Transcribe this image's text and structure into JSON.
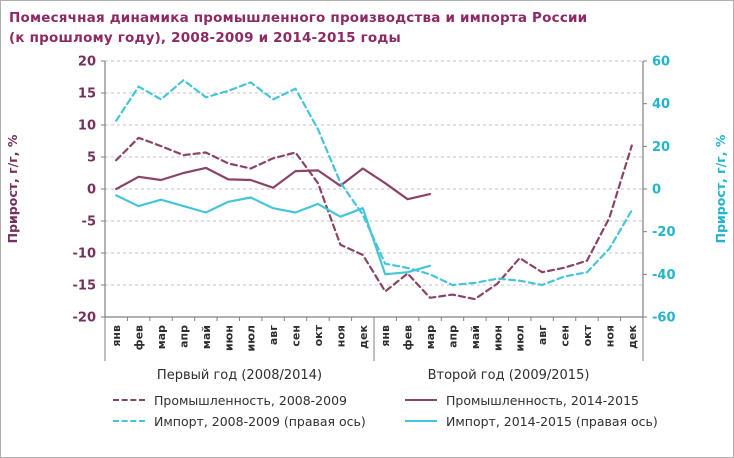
{
  "title": {
    "line1": "Помесячная динамика промышленного производства и импорта России",
    "line2": "(к прошлому году), 2008-2009 и 2014-2015 годы"
  },
  "chart_data": {
    "type": "line",
    "categories": [
      "янв",
      "фев",
      "мар",
      "апр",
      "май",
      "июн",
      "июл",
      "авг",
      "сен",
      "окт",
      "ноя",
      "дек",
      "янв",
      "фев",
      "мар",
      "апр",
      "май",
      "июн",
      "июл",
      "авг",
      "сен",
      "окт",
      "ноя",
      "дек"
    ],
    "group_labels": [
      "Первый год (2008/2014)",
      "Второй год (2009/2015)"
    ],
    "left_axis": {
      "title": "Прирост, г/г, %",
      "min": -20,
      "max": 20,
      "ticks": [
        20,
        15,
        10,
        5,
        0,
        -5,
        -10,
        -15,
        -20
      ],
      "color": "#73315c"
    },
    "right_axis": {
      "title": "Прирост, г/г, %",
      "min": -60,
      "max": 60,
      "ticks": [
        60,
        40,
        20,
        0,
        -20,
        -40,
        -60
      ],
      "color": "#23b4cc"
    },
    "grid": true,
    "legend_position": "bottom",
    "series": [
      {
        "name": "Промышленность, 2008-2009",
        "axis": "left",
        "dash": true,
        "color": "#8a4468",
        "values": [
          4.5,
          8.0,
          6.7,
          5.3,
          5.7,
          4.0,
          3.2,
          4.8,
          5.7,
          0.9,
          -8.7,
          -10.3,
          -16.0,
          -13.2,
          -17.0,
          -16.5,
          -17.2,
          -14.8,
          -10.8,
          -13.0,
          -12.3,
          -11.2,
          -4.5,
          6.8
        ]
      },
      {
        "name": "Промышленность, 2014-2015",
        "axis": "left",
        "dash": false,
        "color": "#8a4468",
        "values": [
          0.0,
          1.9,
          1.4,
          2.5,
          3.3,
          1.5,
          1.4,
          0.2,
          2.8,
          2.9,
          0.5,
          3.2,
          0.9,
          -1.6,
          -0.8
        ]
      },
      {
        "name": "Импорт, 2008-2009 (правая ось)",
        "axis": "right",
        "dash": true,
        "color": "#46c4da",
        "values": [
          32,
          48,
          42,
          51,
          43,
          46,
          50,
          42,
          47,
          28,
          3,
          -12,
          -35,
          -37,
          -40,
          -45,
          -44,
          -42,
          -43,
          -45,
          -41,
          -39,
          -28,
          -10
        ]
      },
      {
        "name": "Импорт, 2014-2015 (правая ось)",
        "axis": "right",
        "dash": false,
        "color": "#46c4da",
        "values": [
          -3,
          -8,
          -5,
          -8,
          -11,
          -6,
          -4,
          -9,
          -11,
          -7,
          -13,
          -9,
          -40,
          -39,
          -36
        ]
      }
    ]
  },
  "colors": {
    "title": "#8d2963",
    "axis_line": "#808080",
    "grid": "#c6c6c6",
    "text": "#2e2e2e"
  }
}
